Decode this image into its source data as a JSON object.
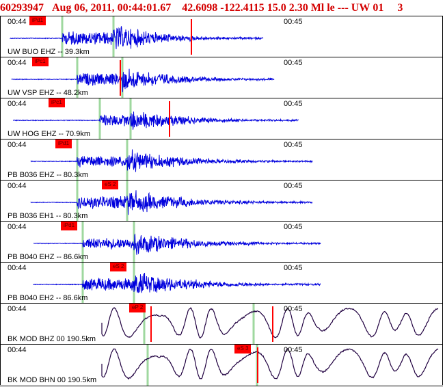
{
  "header": {
    "event_id": "60293947",
    "date": "Aug 06, 2011",
    "time": "00:44:01.67",
    "latitude": "42.6098",
    "longitude": "-122.4115",
    "depth": "15.0",
    "magnitude": "2.30",
    "mag_type": "Ml",
    "event_type": "le",
    "flags": "---",
    "network": "UW",
    "version": "01",
    "trailing": "3"
  },
  "colors": {
    "header_text": "#d40000",
    "broadband_trace": "#0000dd",
    "long_period_trace": "#200040",
    "pick_flag": "#ff0000",
    "arrival_line": "#9fd89f"
  },
  "panels": [
    {
      "station": "UW BUO EHZ -- 39.3km",
      "time_left": "00:44",
      "time_right": "00:45",
      "pick": "iPd1",
      "trace_style": "broadband"
    },
    {
      "station": "UW VSP EHZ -- 48.2km",
      "time_left": "00:44",
      "time_right": "00:45",
      "pick": "iPc1",
      "trace_style": "broadband"
    },
    {
      "station": "UW HOG EHZ -- 70.9km",
      "time_left": "00:44",
      "time_right": "00:45",
      "pick": "iPc1",
      "trace_style": "broadband"
    },
    {
      "station": "PB B036 EHZ -- 80.3km",
      "time_left": "00:44",
      "time_right": "00:45",
      "pick": "iPd1",
      "trace_style": "broadband"
    },
    {
      "station": "PB B036 EH1 -- 80.3km",
      "time_left": "00:44",
      "time_right": "00:45",
      "pick": "eS 2",
      "trace_style": "broadband"
    },
    {
      "station": "PB B040 EHZ -- 86.6km",
      "time_left": "00:44",
      "time_right": "00:45",
      "pick": "iPd1",
      "trace_style": "broadband"
    },
    {
      "station": "PB B040 EH2 -- 86.6km",
      "time_left": "00:44",
      "time_right": "00:45",
      "pick": "eS 2",
      "trace_style": "broadband"
    },
    {
      "station": "BK MOD BHZ 00 190.5km",
      "time_left": "00:44",
      "time_right": "00:45",
      "pick": "eP 2",
      "trace_style": "long_period"
    },
    {
      "station": "BK MOD BHN 00 190.5km",
      "time_left": "00:44",
      "time_right": "00:45",
      "pick": "eS 3",
      "trace_style": "long_period"
    }
  ]
}
